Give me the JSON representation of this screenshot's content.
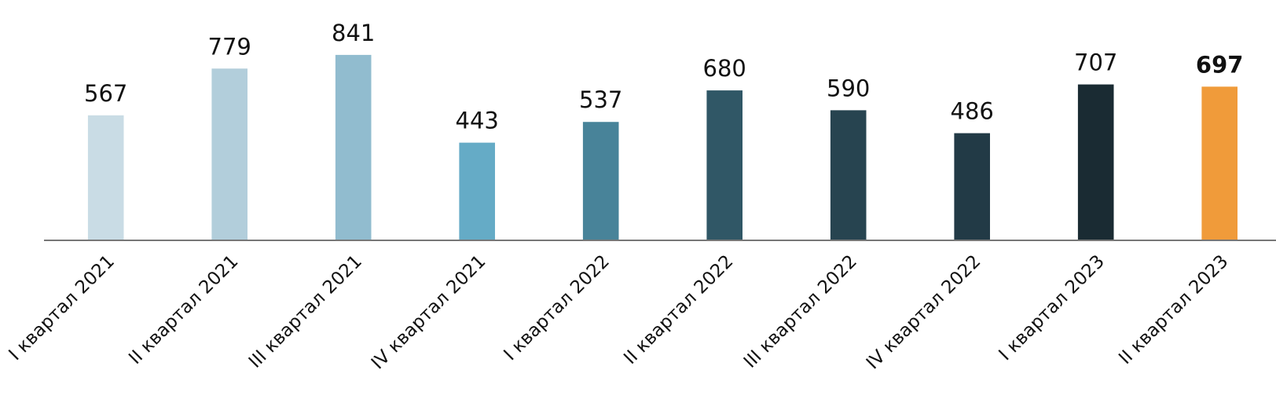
{
  "chart_data": {
    "type": "bar",
    "categories": [
      "I квартал 2021",
      "II квартал 2021",
      "III квартал 2021",
      "IV квартал 2021",
      "I квартал 2022",
      "II квартал 2022",
      "III квартал 2022",
      "IV квартал 2022",
      "I квартал 2023",
      "II квартал 2023"
    ],
    "values": [
      567,
      779,
      841,
      443,
      537,
      680,
      590,
      486,
      707,
      697
    ],
    "colors": [
      "#c9dce5",
      "#b2cedb",
      "#91bccf",
      "#65abc6",
      "#488399",
      "#305766",
      "#274450",
      "#223a46",
      "#1a2b33",
      "#f09b3a"
    ],
    "highlight_index": 9,
    "ylim": [
      0,
      1090
    ]
  }
}
